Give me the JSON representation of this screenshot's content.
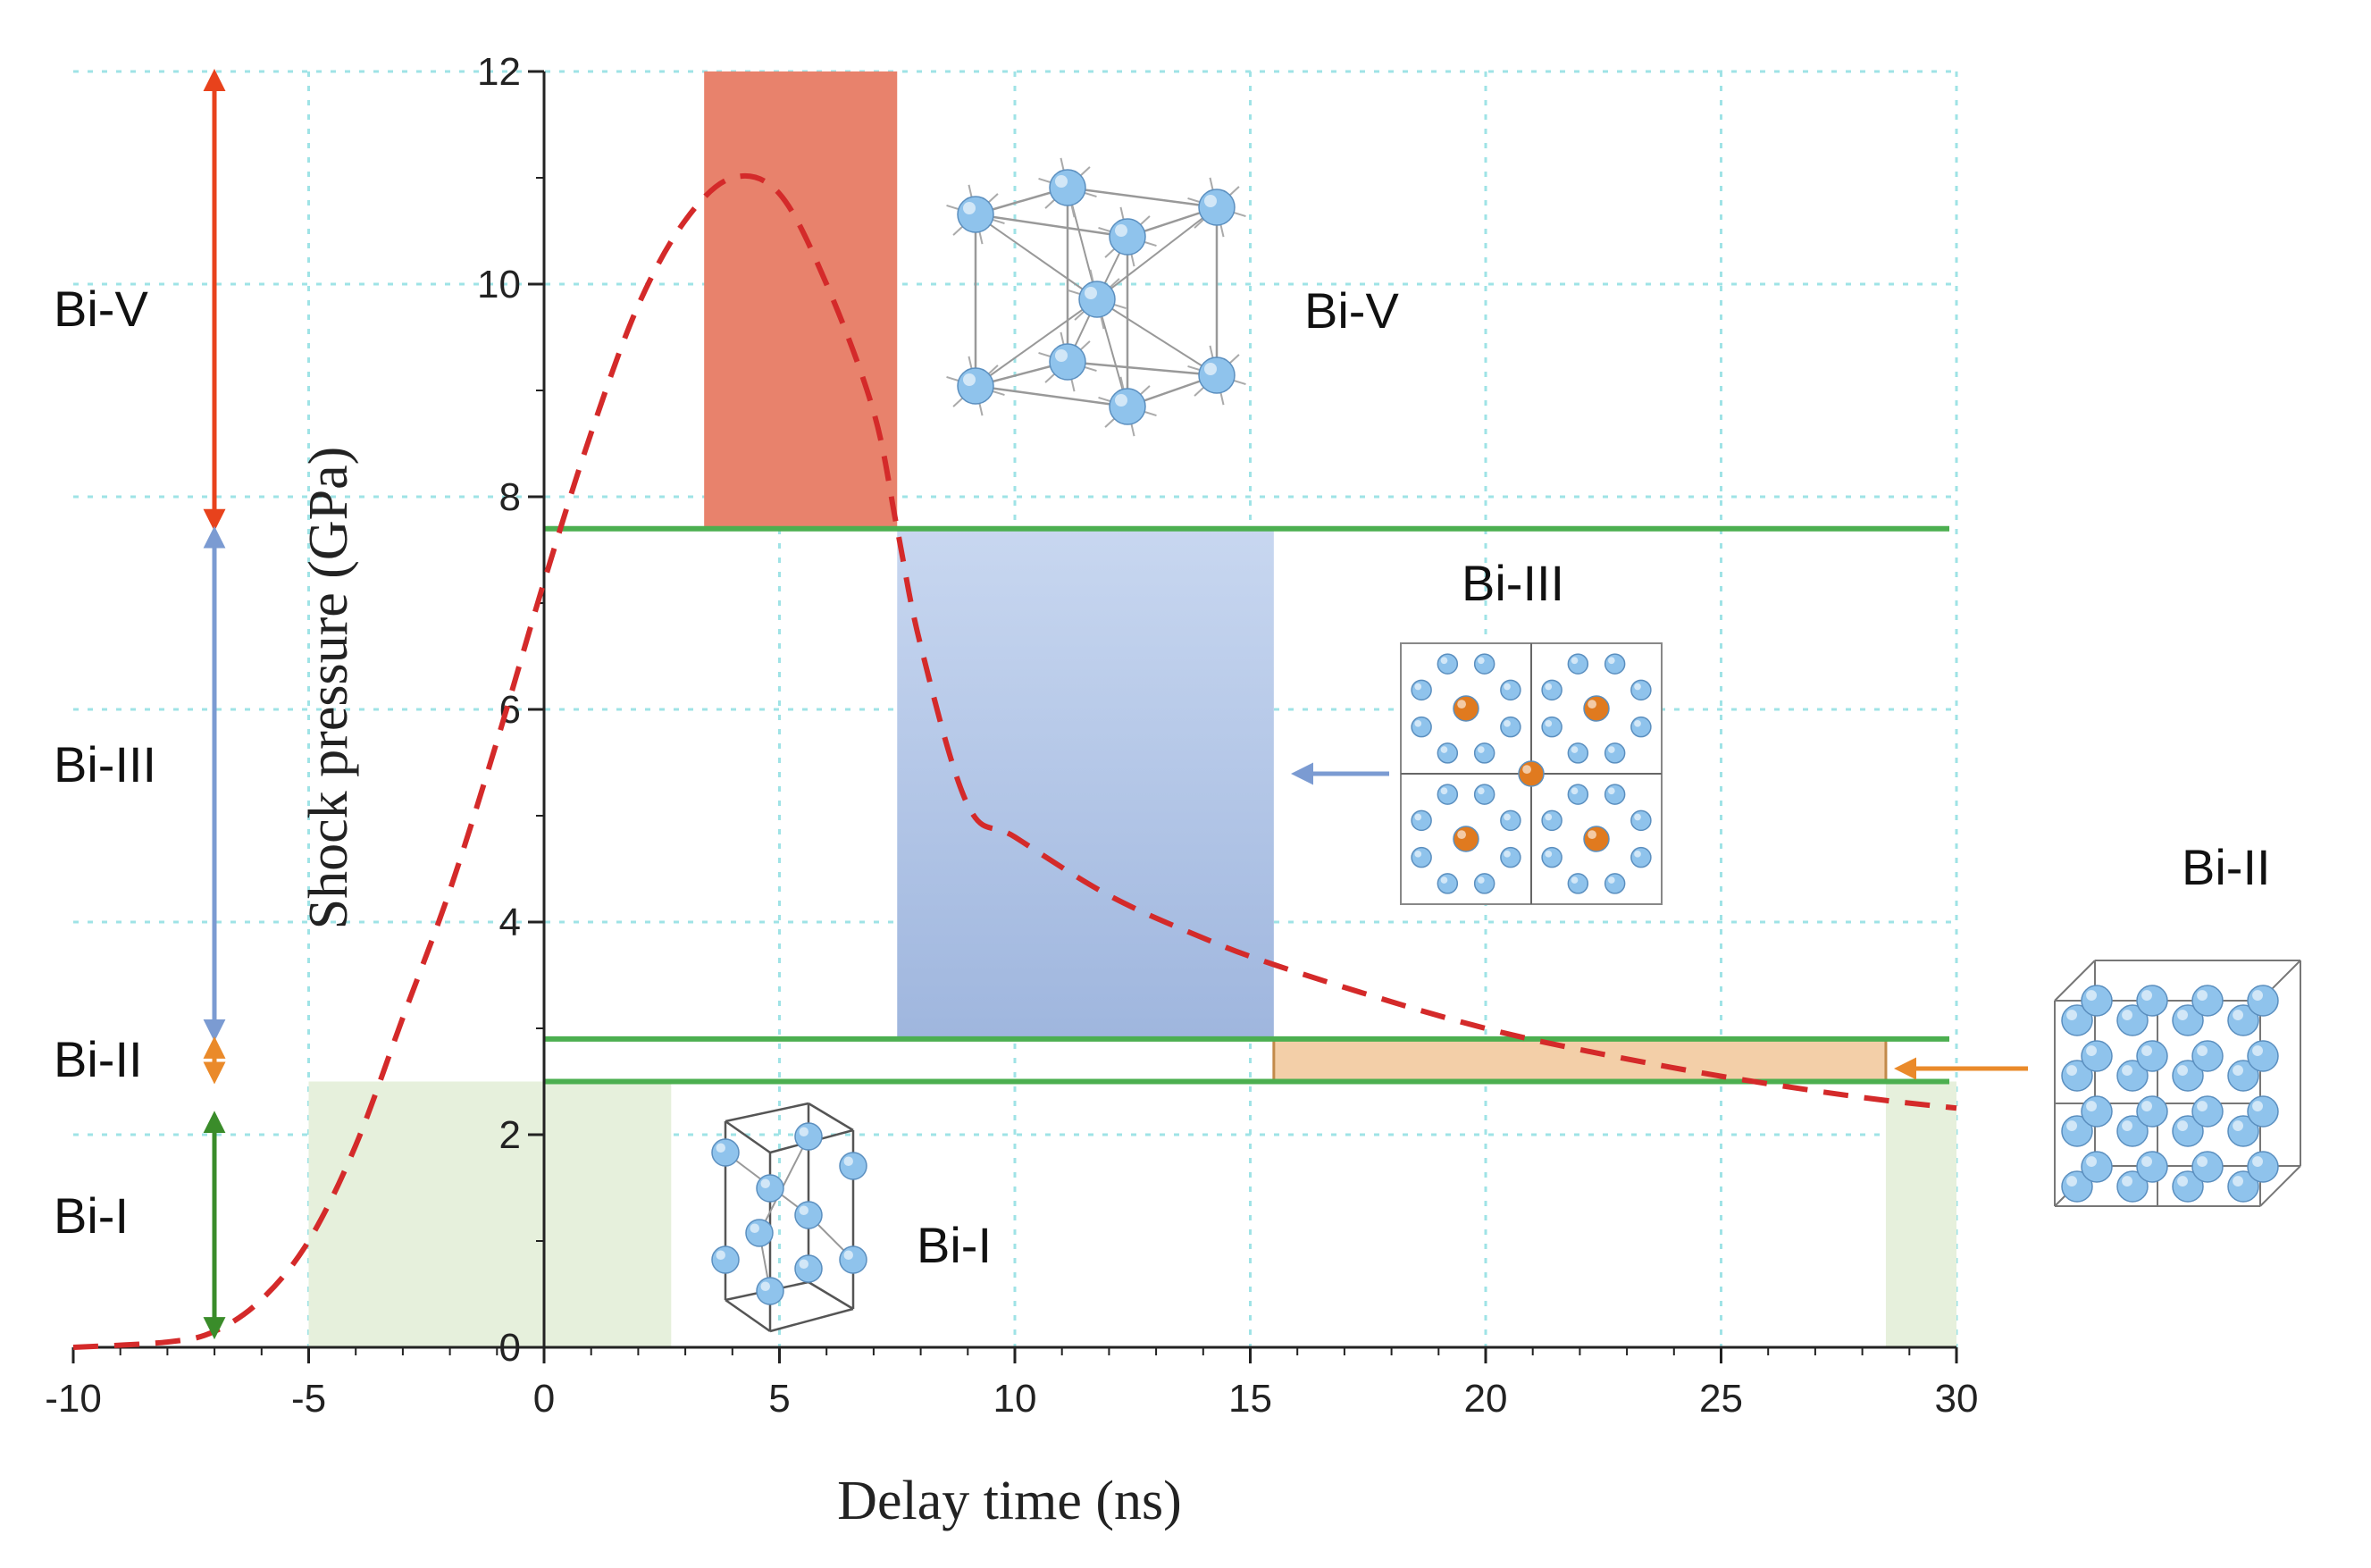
{
  "chart_data": {
    "type": "line",
    "xlabel": "Delay time (ns)",
    "ylabel": "Shock pressure (GPa)",
    "xlim": [
      -10,
      30
    ],
    "ylim": [
      0,
      12
    ],
    "x_ticks": [
      -10,
      -5,
      0,
      5,
      10,
      15,
      20,
      25,
      30
    ],
    "y_ticks": [
      0,
      2,
      4,
      6,
      8,
      10,
      12
    ],
    "grid": true,
    "series": [
      {
        "name": "shock pressure",
        "style": "dashed",
        "color": "#d42a2a",
        "x": [
          -10,
          -8,
          -7,
          -6,
          -5,
          -4,
          -3,
          -2,
          -1,
          0,
          1,
          2,
          3,
          4,
          5,
          6,
          7,
          7.5,
          8,
          9,
          10,
          12,
          14,
          15.5,
          18,
          20,
          22,
          25,
          28,
          30
        ],
        "y": [
          0.0,
          0.05,
          0.15,
          0.45,
          1.0,
          1.9,
          3.1,
          4.3,
          5.7,
          7.2,
          8.6,
          9.8,
          10.6,
          11.0,
          10.85,
          10.0,
          8.8,
          7.7,
          6.6,
          5.1,
          4.8,
          4.25,
          3.85,
          3.6,
          3.25,
          3.0,
          2.8,
          2.55,
          2.35,
          2.25
        ]
      }
    ],
    "phase_boundaries": [
      {
        "y": 7.7,
        "color": "#4caf50"
      },
      {
        "y": 2.9,
        "color": "#4caf50"
      },
      {
        "y": 2.5,
        "color": "#4caf50"
      }
    ],
    "regions": [
      {
        "phase": "Bi-V",
        "x": [
          3.4,
          7.5
        ],
        "y": [
          7.7,
          12
        ],
        "color": "#e8826c"
      },
      {
        "phase": "Bi-III",
        "x": [
          7.5,
          15.5
        ],
        "y": [
          2.9,
          7.7
        ],
        "color": "#9fb6de"
      },
      {
        "phase": "Bi-II",
        "x": [
          15.5,
          28.5
        ],
        "y": [
          2.5,
          2.9
        ],
        "color": "#f3cfa8"
      },
      {
        "phase": "Bi-I",
        "x": [
          -5,
          2.7
        ],
        "y": [
          0,
          2.5
        ],
        "color": "#e6f0dc"
      },
      {
        "phase": "Bi-I",
        "x": [
          28.5,
          30
        ],
        "y": [
          0,
          2.5
        ],
        "color": "#e6f0dc"
      }
    ],
    "phase_ranges": [
      {
        "label": "Bi-V",
        "y": [
          7.7,
          12
        ],
        "color": "#e8421c"
      },
      {
        "label": "Bi-III",
        "y": [
          2.9,
          7.7
        ],
        "color": "#7b9bd2"
      },
      {
        "label": "Bi-II",
        "y": [
          2.5,
          2.9
        ],
        "color": "#ea8a2a"
      },
      {
        "label": "Bi-I",
        "y": [
          0.1,
          2.2
        ],
        "color": "#3a8c2a"
      }
    ],
    "annotations": [
      "Bi-V",
      "Bi-III",
      "Bi-I",
      "Bi-II"
    ]
  }
}
